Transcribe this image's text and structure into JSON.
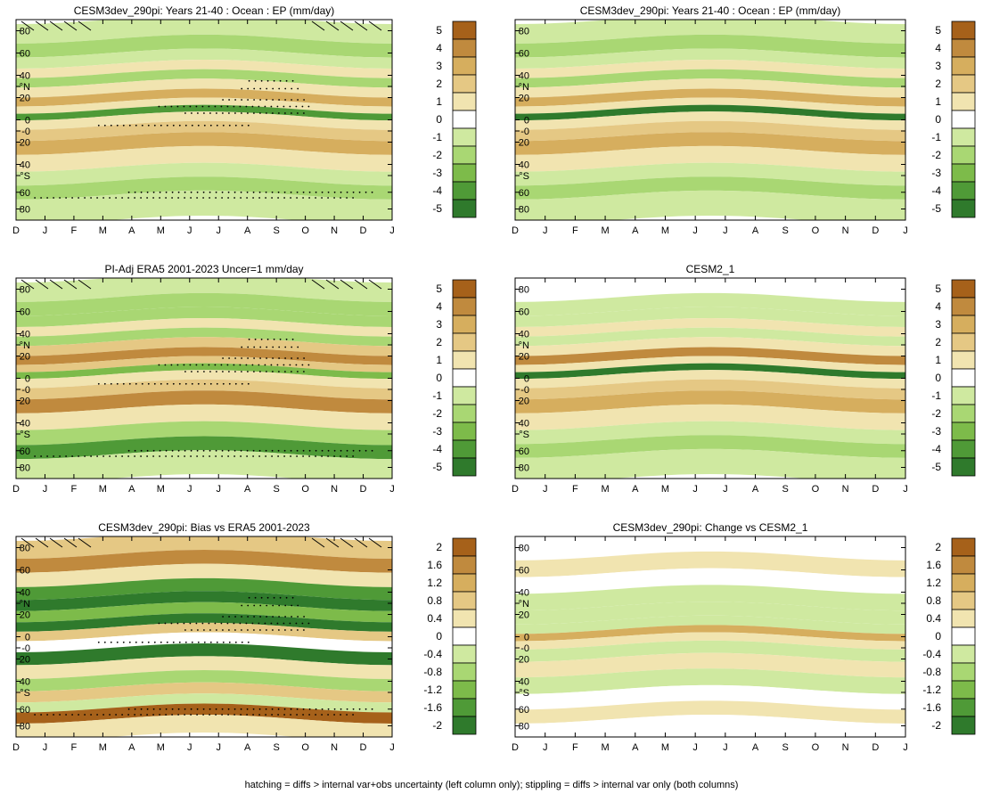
{
  "footer_note": "hatching = diffs > internal var+obs uncertainty (left column only); stippling = diffs > internal var only (both columns)",
  "chart_data": [
    {
      "type": "heatmap",
      "title": "CESM3dev_290pi: Years 21-40 : Ocean : EP (mm/day)",
      "x_ticks": [
        "D",
        "J",
        "F",
        "M",
        "A",
        "M",
        "J",
        "J",
        "A",
        "S",
        "O",
        "N",
        "D",
        "J"
      ],
      "y_ticks": [
        "80",
        "60",
        "40",
        "°N",
        "20",
        "0",
        "-0",
        "20",
        "40",
        "°S",
        "60",
        "80"
      ],
      "ylim": [
        -90,
        90
      ],
      "colorbar": [
        "5",
        "4",
        "3",
        "2",
        "1",
        "0",
        "-1",
        "-2",
        "-3",
        "-4",
        "-5"
      ],
      "latitude_bands": [
        {
          "lat": 80,
          "value": -0.5
        },
        {
          "lat": 65,
          "value": -1.5
        },
        {
          "lat": 55,
          "value": -1.0
        },
        {
          "lat": 45,
          "value": 0.5
        },
        {
          "lat": 38,
          "value": -1.5
        },
        {
          "lat": 28,
          "value": 1.0
        },
        {
          "lat": 20,
          "value": 3.0
        },
        {
          "lat": 12,
          "value": 1.0
        },
        {
          "lat": 7,
          "value": -3.5
        },
        {
          "lat": 0,
          "value": 0.5
        },
        {
          "lat": -10,
          "value": 2.0
        },
        {
          "lat": -20,
          "value": 3.0
        },
        {
          "lat": -35,
          "value": 0.5
        },
        {
          "lat": -50,
          "value": -1.0
        },
        {
          "lat": -60,
          "value": -2.0
        },
        {
          "lat": -75,
          "value": -0.5
        }
      ],
      "hatching": true,
      "stippling": true
    },
    {
      "type": "heatmap",
      "title": "CESM3dev_290pi: Years 21-40 : Ocean : EP (mm/day)",
      "x_ticks": [
        "D",
        "J",
        "F",
        "M",
        "A",
        "M",
        "J",
        "J",
        "A",
        "S",
        "O",
        "N",
        "D",
        "J"
      ],
      "y_ticks": [
        "80",
        "60",
        "40",
        "°N",
        "20",
        "0",
        "-0",
        "20",
        "40",
        "°S",
        "60",
        "80"
      ],
      "ylim": [
        -90,
        90
      ],
      "colorbar": [
        "5",
        "4",
        "3",
        "2",
        "1",
        "0",
        "-1",
        "-2",
        "-3",
        "-4",
        "-5"
      ],
      "latitude_bands": [
        {
          "lat": 80,
          "value": -0.5
        },
        {
          "lat": 65,
          "value": -1.5
        },
        {
          "lat": 55,
          "value": -1.0
        },
        {
          "lat": 45,
          "value": 0.5
        },
        {
          "lat": 38,
          "value": -1.5
        },
        {
          "lat": 28,
          "value": 1.0
        },
        {
          "lat": 20,
          "value": 3.0
        },
        {
          "lat": 12,
          "value": 1.0
        },
        {
          "lat": 7,
          "value": -4.5
        },
        {
          "lat": 0,
          "value": 0.5
        },
        {
          "lat": -10,
          "value": 2.0
        },
        {
          "lat": -20,
          "value": 3.0
        },
        {
          "lat": -35,
          "value": 0.5
        },
        {
          "lat": -50,
          "value": -1.0
        },
        {
          "lat": -60,
          "value": -2.0
        },
        {
          "lat": -75,
          "value": -0.5
        }
      ],
      "hatching": false,
      "stippling": false
    },
    {
      "type": "heatmap",
      "title": "PI-Adj ERA5 2001-2023 Uncer=1 mm/day",
      "x_ticks": [
        "D",
        "J",
        "F",
        "M",
        "A",
        "M",
        "J",
        "J",
        "A",
        "S",
        "O",
        "N",
        "D",
        "J"
      ],
      "y_ticks": [
        "80",
        "60",
        "40",
        "°N",
        "20",
        "0",
        "-0",
        "20",
        "40",
        "°S",
        "60",
        "80"
      ],
      "ylim": [
        -90,
        90
      ],
      "colorbar": [
        "5",
        "4",
        "3",
        "2",
        "1",
        "0",
        "-1",
        "-2",
        "-3",
        "-4",
        "-5"
      ],
      "latitude_bands": [
        {
          "lat": 80,
          "value": -1.0
        },
        {
          "lat": 65,
          "value": -2.0
        },
        {
          "lat": 55,
          "value": -1.5
        },
        {
          "lat": 45,
          "value": 0.5
        },
        {
          "lat": 38,
          "value": -1.5
        },
        {
          "lat": 28,
          "value": 2.0
        },
        {
          "lat": 20,
          "value": 4.0
        },
        {
          "lat": 12,
          "value": 1.5
        },
        {
          "lat": 7,
          "value": -3.0
        },
        {
          "lat": 0,
          "value": 0.5
        },
        {
          "lat": -10,
          "value": 2.0
        },
        {
          "lat": -20,
          "value": 3.5
        },
        {
          "lat": -35,
          "value": 0.5
        },
        {
          "lat": -50,
          "value": -1.5
        },
        {
          "lat": -62,
          "value": -4.0
        },
        {
          "lat": -75,
          "value": -1.0
        }
      ],
      "hatching": true,
      "stippling": true
    },
    {
      "type": "heatmap",
      "title": "CESM2_1",
      "x_ticks": [
        "D",
        "J",
        "F",
        "M",
        "A",
        "M",
        "J",
        "J",
        "A",
        "S",
        "O",
        "N",
        "D",
        "J"
      ],
      "y_ticks": [
        "80",
        "60",
        "40",
        "°N",
        "20",
        "0",
        "-0",
        "20",
        "40",
        "°S",
        "60",
        "80"
      ],
      "ylim": [
        -90,
        90
      ],
      "colorbar": [
        "5",
        "4",
        "3",
        "2",
        "1",
        "0",
        "-1",
        "-2",
        "-3",
        "-4",
        "-5"
      ],
      "latitude_bands": [
        {
          "lat": 80,
          "value": 0.0
        },
        {
          "lat": 65,
          "value": -1.0
        },
        {
          "lat": 55,
          "value": -1.0
        },
        {
          "lat": 45,
          "value": 0.5
        },
        {
          "lat": 38,
          "value": -1.0
        },
        {
          "lat": 28,
          "value": 1.0
        },
        {
          "lat": 20,
          "value": 3.5
        },
        {
          "lat": 12,
          "value": 1.0
        },
        {
          "lat": 7,
          "value": -4.5
        },
        {
          "lat": 0,
          "value": 0.5
        },
        {
          "lat": -10,
          "value": 2.0
        },
        {
          "lat": -20,
          "value": 3.0
        },
        {
          "lat": -35,
          "value": 0.5
        },
        {
          "lat": -50,
          "value": -1.0
        },
        {
          "lat": -60,
          "value": -2.0
        },
        {
          "lat": -75,
          "value": -0.5
        }
      ],
      "hatching": false,
      "stippling": false
    },
    {
      "type": "heatmap",
      "title": "CESM3dev_290pi: Bias vs ERA5 2001-2023",
      "x_ticks": [
        "D",
        "J",
        "F",
        "M",
        "A",
        "M",
        "J",
        "J",
        "A",
        "S",
        "O",
        "N",
        "D",
        "J"
      ],
      "y_ticks": [
        "80",
        "60",
        "40",
        "°N",
        "20",
        "0",
        "-0",
        "20",
        "40",
        "°S",
        "60",
        "80"
      ],
      "ylim": [
        -90,
        90
      ],
      "colorbar": [
        "2",
        "1.6",
        "1.2",
        "0.8",
        "0.4",
        "0",
        "-0.4",
        "-0.8",
        "-1.2",
        "-1.6",
        "-2"
      ],
      "latitude_bands": [
        {
          "lat": 80,
          "value": 0.8
        },
        {
          "lat": 68,
          "value": 1.6
        },
        {
          "lat": 55,
          "value": 0.2
        },
        {
          "lat": 42,
          "value": -1.6
        },
        {
          "lat": 32,
          "value": -2.0
        },
        {
          "lat": 22,
          "value": -1.2
        },
        {
          "lat": 12,
          "value": -2.0
        },
        {
          "lat": 5,
          "value": 0.8
        },
        {
          "lat": -5,
          "value": 0.0
        },
        {
          "lat": -15,
          "value": -2.0
        },
        {
          "lat": -28,
          "value": 0.4
        },
        {
          "lat": -40,
          "value": -0.8
        },
        {
          "lat": -50,
          "value": 0.8
        },
        {
          "lat": -60,
          "value": -0.4
        },
        {
          "lat": -68,
          "value": 2.0
        },
        {
          "lat": -80,
          "value": 0.4
        }
      ],
      "hatching": true,
      "stippling": true
    },
    {
      "type": "heatmap",
      "title": "CESM3dev_290pi: Change vs CESM2_1",
      "x_ticks": [
        "D",
        "J",
        "F",
        "M",
        "A",
        "M",
        "J",
        "J",
        "A",
        "S",
        "O",
        "N",
        "D",
        "J"
      ],
      "y_ticks": [
        "80",
        "60",
        "40",
        "°N",
        "20",
        "0",
        "-0",
        "20",
        "40",
        "°S",
        "60",
        "80"
      ],
      "ylim": [
        -90,
        90
      ],
      "colorbar": [
        "2",
        "1.6",
        "1.2",
        "0.8",
        "0.4",
        "0",
        "-0.4",
        "-0.8",
        "-1.2",
        "-1.6",
        "-2"
      ],
      "latitude_bands": [
        {
          "lat": 80,
          "value": 0.0
        },
        {
          "lat": 65,
          "value": 0.2
        },
        {
          "lat": 50,
          "value": 0.0
        },
        {
          "lat": 35,
          "value": -0.2
        },
        {
          "lat": 20,
          "value": -0.4
        },
        {
          "lat": 10,
          "value": -0.6
        },
        {
          "lat": 3,
          "value": 1.2
        },
        {
          "lat": -3,
          "value": 0.4
        },
        {
          "lat": -12,
          "value": -0.6
        },
        {
          "lat": -25,
          "value": 0.2
        },
        {
          "lat": -40,
          "value": -0.3
        },
        {
          "lat": -55,
          "value": 0.0
        },
        {
          "lat": -68,
          "value": 0.3
        },
        {
          "lat": -80,
          "value": 0.0
        }
      ],
      "hatching": false,
      "stippling": false
    }
  ]
}
